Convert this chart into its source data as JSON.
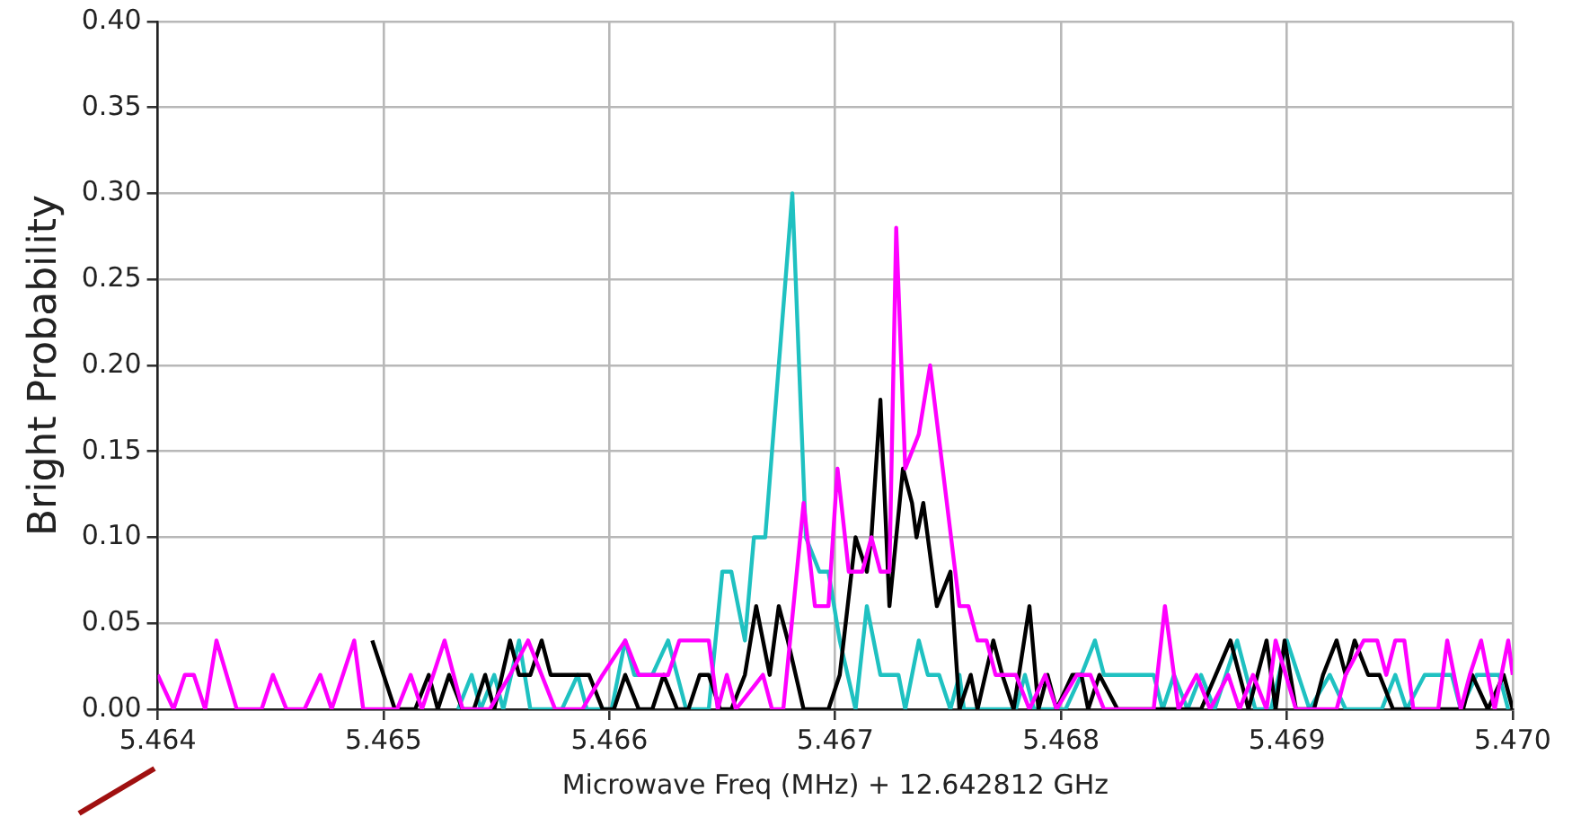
{
  "chart_data": {
    "type": "line",
    "xlabel": "Microwave Freq (MHz) + 12.642812 GHz",
    "ylabel": "Bright Probability",
    "xlim": [
      5.464,
      5.47
    ],
    "xticks": [
      5.464,
      5.465,
      5.466,
      5.467,
      5.468,
      5.469,
      {
        "value": 5.47,
        "label": "5.470"
      }
    ],
    "ylim": [
      0,
      0.4
    ],
    "yticks": [
      {
        "value": 0,
        "label": "0.00"
      },
      {
        "value": 0.05,
        "label": "0.05"
      },
      {
        "value": 0.1,
        "label": "0.10"
      },
      {
        "value": 0.15,
        "label": "0.15"
      },
      {
        "value": 0.2,
        "label": "0.20"
      },
      {
        "value": 0.25,
        "label": "0.25"
      },
      {
        "value": 0.3,
        "label": "0.30"
      },
      {
        "value": 0.35,
        "label": "0.35"
      },
      {
        "value": 0.4,
        "label": "0.40"
      }
    ],
    "grid": true,
    "series": [
      {
        "color": "#ff00ff",
        "x": [
          5.464,
          5.46407,
          5.46412,
          5.46416,
          5.46421,
          5.46426,
          5.46435,
          5.46446,
          5.46451,
          5.46457,
          5.46465,
          5.46472,
          5.46477,
          5.46487,
          5.46491,
          5.46506,
          5.46512,
          5.46517,
          5.46527,
          5.46535,
          5.46547,
          5.46556,
          5.46564,
          5.4657,
          5.46576,
          5.46588,
          5.46597,
          5.46607,
          5.46613,
          5.46626,
          5.46631,
          5.46644,
          5.46648,
          5.46652,
          5.46656,
          5.46668,
          5.46672,
          5.46677,
          5.46686,
          5.46691,
          5.46697,
          5.46701,
          5.46706,
          5.46712,
          5.46716,
          5.4672,
          5.46724,
          5.46727,
          5.46731,
          5.46737,
          5.46742,
          5.46755,
          5.46759,
          5.46763,
          5.46767,
          5.46771,
          5.4678,
          5.46786,
          5.46793,
          5.46798,
          5.46807,
          5.46813,
          5.46819,
          5.46841,
          5.46846,
          5.46852,
          5.4686,
          5.46866,
          5.46874,
          5.46879,
          5.46885,
          5.46891,
          5.46895,
          5.46904,
          5.46922,
          5.46926,
          5.46934,
          5.4694,
          5.46944,
          5.46948,
          5.46952,
          5.46956,
          5.46967,
          5.46971,
          5.46977,
          5.46981,
          5.46986,
          5.46992,
          5.46998,
          5.47
        ],
        "values": [
          0.02,
          0,
          0.02,
          0.02,
          0,
          0.04,
          0,
          0,
          0.02,
          0,
          0,
          0.02,
          0,
          0.04,
          0,
          0,
          0.02,
          0,
          0.04,
          0,
          0,
          0.02,
          0.04,
          0.02,
          0,
          0,
          0.02,
          0.04,
          0.02,
          0.02,
          0.04,
          0.04,
          0,
          0.02,
          0,
          0.02,
          0,
          0,
          0.12,
          0.06,
          0.06,
          0.14,
          0.08,
          0.08,
          0.1,
          0.08,
          0.08,
          0.28,
          0.14,
          0.16,
          0.2,
          0.06,
          0.06,
          0.04,
          0.04,
          0.02,
          0.02,
          0,
          0.02,
          0,
          0.02,
          0.02,
          0,
          0,
          0.06,
          0,
          0.02,
          0,
          0.02,
          0,
          0.02,
          0,
          0.04,
          0,
          0,
          0.02,
          0.04,
          0.04,
          0.02,
          0.04,
          0.04,
          0,
          0,
          0.04,
          0,
          0.02,
          0.04,
          0,
          0.04,
          0.02
        ]
      },
      {
        "color": "#000000",
        "x": [
          5.46495,
          5.46505,
          5.46514,
          5.4652,
          5.46524,
          5.46529,
          5.46535,
          5.4654,
          5.46545,
          5.46549,
          5.46556,
          5.4656,
          5.46565,
          5.4657,
          5.46574,
          5.46591,
          5.46597,
          5.46602,
          5.46607,
          5.46613,
          5.46619,
          5.46624,
          5.4663,
          5.46635,
          5.4664,
          5.46644,
          5.46649,
          5.46654,
          5.4666,
          5.46665,
          5.46671,
          5.46675,
          5.46679,
          5.46686,
          5.46697,
          5.46702,
          5.46709,
          5.46714,
          5.46716,
          5.4672,
          5.46724,
          5.4673,
          5.46734,
          5.46736,
          5.46739,
          5.46745,
          5.46751,
          5.46755,
          5.4676,
          5.46763,
          5.4677,
          5.46774,
          5.46779,
          5.46786,
          5.4679,
          5.46794,
          5.46798,
          5.46805,
          5.46809,
          5.46812,
          5.46817,
          5.46825,
          5.46862,
          5.46875,
          5.46883,
          5.46891,
          5.46895,
          5.46899,
          5.46904,
          5.46912,
          5.46916,
          5.46922,
          5.46926,
          5.4693,
          5.46936,
          5.46941,
          5.46947,
          5.46978,
          5.46982,
          5.46989,
          5.46996,
          5.47
        ],
        "values": [
          0.04,
          0,
          0,
          0.02,
          0,
          0.02,
          0,
          0,
          0.02,
          0,
          0.04,
          0.02,
          0.02,
          0.04,
          0.02,
          0.02,
          0,
          0,
          0.02,
          0,
          0,
          0.02,
          0,
          0,
          0.02,
          0.02,
          0,
          0,
          0.02,
          0.06,
          0.02,
          0.06,
          0.04,
          0,
          0,
          0.02,
          0.1,
          0.08,
          0.1,
          0.18,
          0.06,
          0.14,
          0.12,
          0.1,
          0.12,
          0.06,
          0.08,
          0,
          0.02,
          0,
          0.04,
          0.02,
          0,
          0.06,
          0,
          0.02,
          0,
          0.02,
          0.02,
          0,
          0.02,
          0,
          0,
          0.04,
          0,
          0.04,
          0,
          0.04,
          0,
          0,
          0.02,
          0.04,
          0.02,
          0.04,
          0.02,
          0.02,
          0,
          0,
          0.02,
          0,
          0.02,
          0
        ]
      },
      {
        "color": "#1fc1c1",
        "x": [
          5.46533,
          5.46539,
          5.46543,
          5.46549,
          5.46553,
          5.4656,
          5.46565,
          5.46579,
          5.46586,
          5.4659,
          5.46601,
          5.46607,
          5.46611,
          5.46619,
          5.46626,
          5.4663,
          5.46634,
          5.46644,
          5.4665,
          5.46654,
          5.4666,
          5.46664,
          5.46669,
          5.46681,
          5.46687,
          5.46693,
          5.46697,
          5.46702,
          5.46709,
          5.46714,
          5.4672,
          5.46728,
          5.46731,
          5.46737,
          5.46741,
          5.46746,
          5.46751,
          5.46755,
          5.46757,
          5.4678,
          5.46784,
          5.46788,
          5.46802,
          5.46809,
          5.46815,
          5.46819,
          5.46841,
          5.46845,
          5.4685,
          5.46856,
          5.46862,
          5.46868,
          5.46878,
          5.46886,
          5.46893,
          5.469,
          5.4691,
          5.46919,
          5.46926,
          5.46942,
          5.46948,
          5.46953,
          5.46961,
          5.46973,
          5.46977,
          5.46984,
          5.46994,
          5.46998
        ],
        "values": [
          0,
          0.02,
          0,
          0.02,
          0,
          0.04,
          0,
          0,
          0.02,
          0,
          0,
          0.04,
          0.02,
          0.02,
          0.04,
          0.02,
          0,
          0,
          0.08,
          0.08,
          0.04,
          0.1,
          0.1,
          0.3,
          0.1,
          0.08,
          0.08,
          0.04,
          0,
          0.06,
          0.02,
          0.02,
          0,
          0.04,
          0.02,
          0.02,
          0,
          0.02,
          0,
          0,
          0.02,
          0,
          0,
          0.02,
          0.04,
          0.02,
          0.02,
          0,
          0.02,
          0,
          0.02,
          0,
          0.04,
          0,
          0,
          0.04,
          0,
          0.02,
          0,
          0,
          0.02,
          0,
          0.02,
          0.02,
          0,
          0.02,
          0.02,
          0
        ]
      }
    ]
  }
}
